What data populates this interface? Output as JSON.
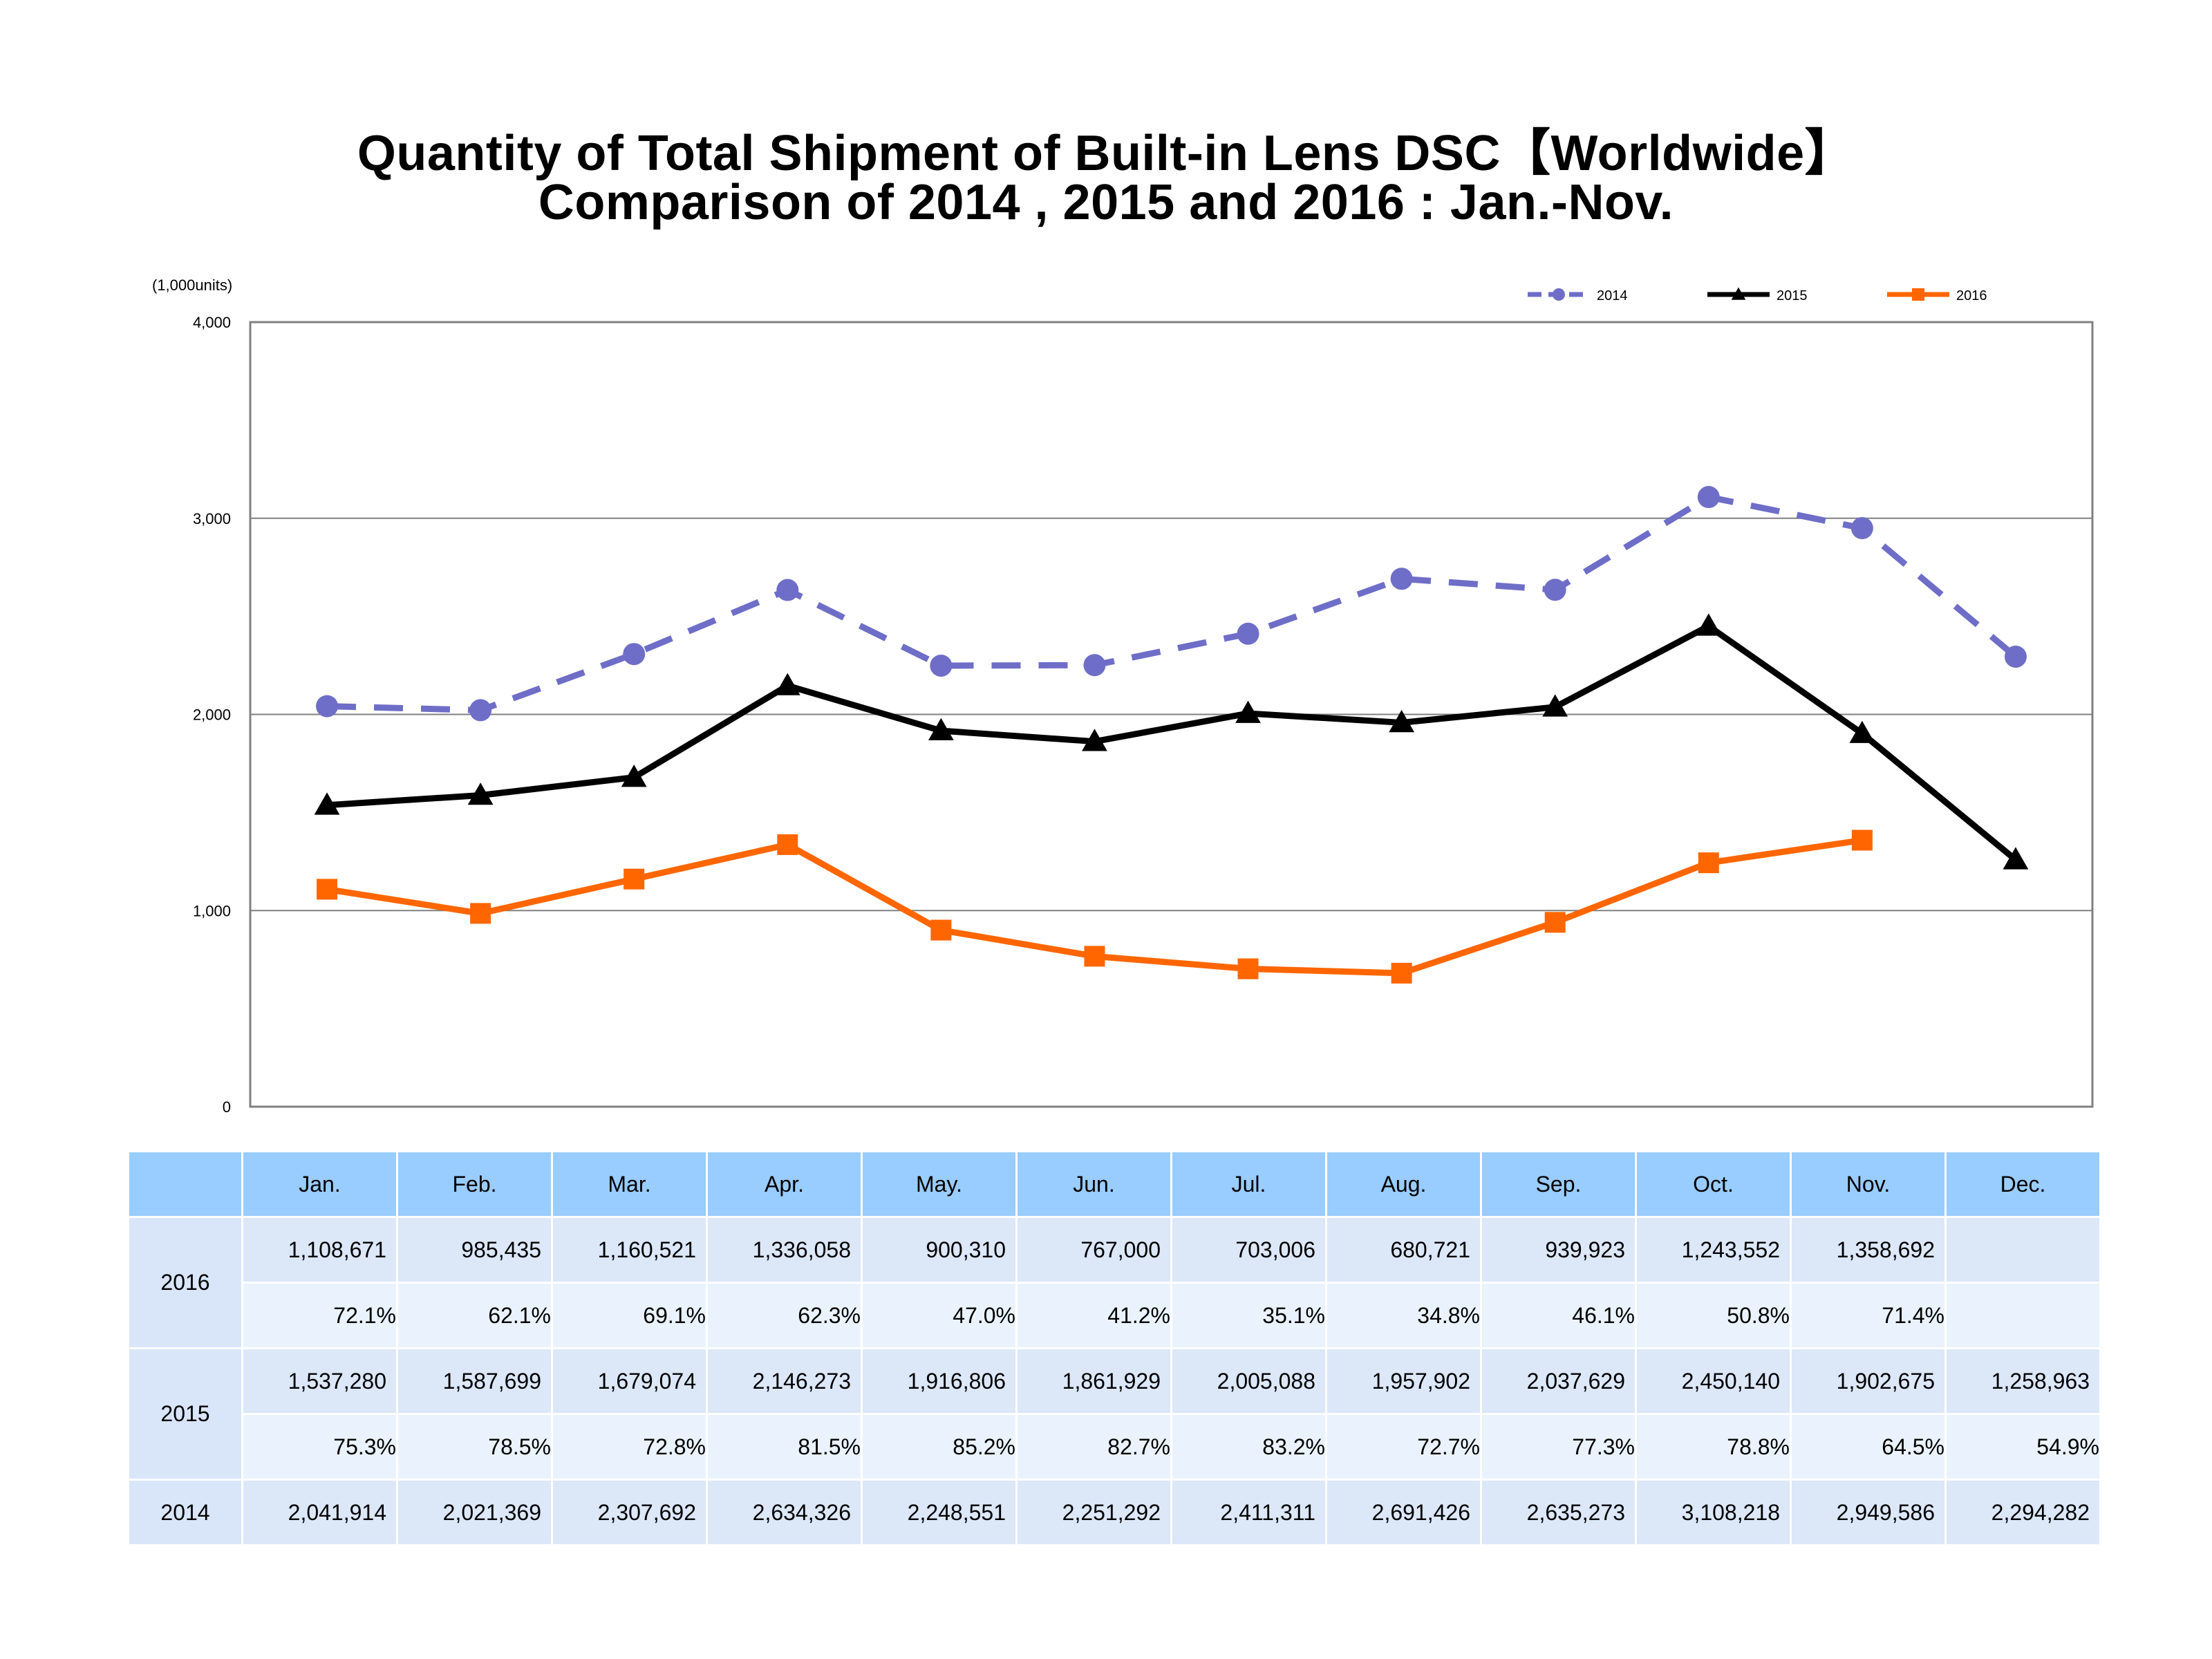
{
  "title_line1": "Quantity of Total Shipment of Built-in Lens DSC【Worldwide】",
  "title_line2": "Comparison of 2014 , 2015 and 2016 : Jan.-Nov.",
  "chart_data": {
    "type": "line",
    "unit_label": "(1,000units)",
    "ylim": [
      0,
      4000
    ],
    "yticks": [
      "0",
      "1,000",
      "2,000",
      "3,000",
      "4,000"
    ],
    "ytick_values": [
      0,
      1000,
      2000,
      3000,
      4000
    ],
    "grid": true,
    "legend_position": "top-right",
    "categories": [
      "Jan.",
      "Feb.",
      "Mar.",
      "Apr.",
      "May.",
      "Jun.",
      "Jul.",
      "Aug.",
      "Sep.",
      "Oct.",
      "Nov.",
      "Dec."
    ],
    "series": [
      {
        "name": "2014",
        "color": "#6e6ec8",
        "style": "dashed",
        "marker": "circle",
        "values": [
          2041.914,
          2021.369,
          2307.692,
          2634.326,
          2248.551,
          2251.292,
          2411.311,
          2691.426,
          2635.273,
          3108.218,
          2949.586,
          2294.282
        ]
      },
      {
        "name": "2015",
        "color": "#000000",
        "style": "solid",
        "marker": "triangle",
        "values": [
          1537.28,
          1587.699,
          1679.074,
          2146.273,
          1916.806,
          1861.929,
          2005.088,
          1957.902,
          2037.629,
          2450.14,
          1902.675,
          1258.963
        ]
      },
      {
        "name": "2016",
        "color": "#ff6600",
        "style": "solid",
        "marker": "square",
        "values": [
          1108.671,
          985.435,
          1160.521,
          1336.058,
          900.31,
          767.0,
          703.006,
          680.721,
          939.923,
          1243.552,
          1358.692,
          null
        ]
      }
    ]
  },
  "table": {
    "months": [
      "Jan.",
      "Feb.",
      "Mar.",
      "Apr.",
      "May.",
      "Jun.",
      "Jul.",
      "Aug.",
      "Sep.",
      "Oct.",
      "Nov.",
      "Dec."
    ],
    "rows": [
      {
        "year": "2016",
        "values": [
          "1,108,671",
          "985,435",
          "1,160,521",
          "1,336,058",
          "900,310",
          "767,000",
          "703,006",
          "680,721",
          "939,923",
          "1,243,552",
          "1,358,692",
          ""
        ],
        "percents": [
          "72.1%",
          "62.1%",
          "69.1%",
          "62.3%",
          "47.0%",
          "41.2%",
          "35.1%",
          "34.8%",
          "46.1%",
          "50.8%",
          "71.4%",
          ""
        ]
      },
      {
        "year": "2015",
        "values": [
          "1,537,280",
          "1,587,699",
          "1,679,074",
          "2,146,273",
          "1,916,806",
          "1,861,929",
          "2,005,088",
          "1,957,902",
          "2,037,629",
          "2,450,140",
          "1,902,675",
          "1,258,963"
        ],
        "percents": [
          "75.3%",
          "78.5%",
          "72.8%",
          "81.5%",
          "85.2%",
          "82.7%",
          "83.2%",
          "72.7%",
          "77.3%",
          "78.8%",
          "64.5%",
          "54.9%"
        ]
      },
      {
        "year": "2014",
        "values": [
          "2,041,914",
          "2,021,369",
          "2,307,692",
          "2,634,326",
          "2,248,551",
          "2,251,292",
          "2,411,311",
          "2,691,426",
          "2,635,273",
          "3,108,218",
          "2,949,586",
          "2,294,282"
        ]
      }
    ]
  }
}
